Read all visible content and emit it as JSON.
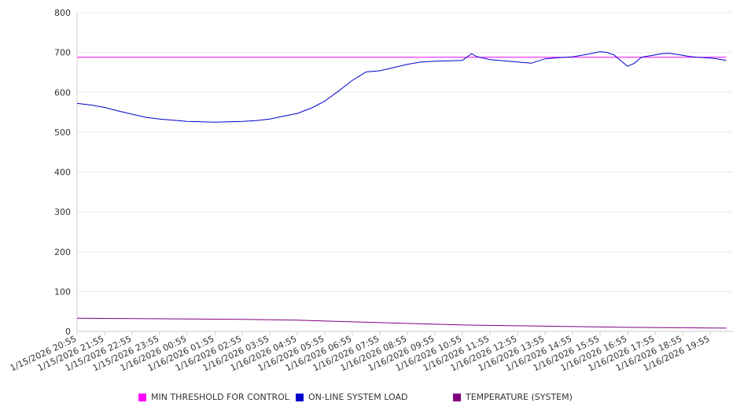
{
  "colors": {
    "threshold": "#ff00ff",
    "load": "#0000cc",
    "temperature": "#800080",
    "grid": "#eaeaea",
    "axis": "#cccccc"
  },
  "legend": [
    {
      "label": "MIN THRESHOLD FOR CONTROL",
      "color": "#ff00ff"
    },
    {
      "label": "ON-LINE SYSTEM LOAD",
      "color": "#0000cc"
    },
    {
      "label": "TEMPERATURE (SYSTEM)",
      "color": "#800080"
    }
  ],
  "chart_data": {
    "type": "line",
    "title": "",
    "xlabel": "",
    "ylabel": "",
    "ylim": [
      0,
      800
    ],
    "yticks": [
      0,
      100,
      200,
      300,
      400,
      500,
      600,
      700,
      800
    ],
    "grid": true,
    "legend_position": "bottom",
    "xtick_labels": [
      "1/15/2026 20:55",
      "1/15/2026 21:55",
      "1/15/2026 22:55",
      "1/15/2026 23:55",
      "1/16/2026 00:55",
      "1/16/2026 01:55",
      "1/16/2026 02:55",
      "1/16/2026 03:55",
      "1/16/2026 04:55",
      "1/16/2026 05:55",
      "1/16/2026 06:55",
      "1/16/2026 07:55",
      "1/16/2026 08:55",
      "1/16/2026 09:55",
      "1/16/2026 10:55",
      "1/16/2026 11:55",
      "1/16/2026 12:55",
      "1/16/2026 13:55",
      "1/16/2026 14:55",
      "1/16/2026 15:55",
      "1/16/2026 16:55",
      "1/16/2026 17:55",
      "1/16/2026 18:55",
      "1/16/2026 19:55"
    ],
    "series": [
      {
        "name": "MIN THRESHOLD FOR CONTROL",
        "x": [
          "1/15/2026 20:55",
          "1/16/2026 20:30"
        ],
        "values": [
          688,
          688
        ]
      },
      {
        "name": "ON-LINE SYSTEM LOAD",
        "x": [
          "1/15/2026 20:55",
          "1/15/2026 21:25",
          "1/15/2026 21:55",
          "1/15/2026 22:25",
          "1/15/2026 22:55",
          "1/15/2026 23:25",
          "1/15/2026 23:55",
          "1/16/2026 00:25",
          "1/16/2026 00:55",
          "1/16/2026 01:25",
          "1/16/2026 01:55",
          "1/16/2026 02:25",
          "1/16/2026 02:55",
          "1/16/2026 03:25",
          "1/16/2026 03:55",
          "1/16/2026 04:25",
          "1/16/2026 04:55",
          "1/16/2026 05:25",
          "1/16/2026 05:55",
          "1/16/2026 06:25",
          "1/16/2026 06:55",
          "1/16/2026 07:25",
          "1/16/2026 07:55",
          "1/16/2026 08:25",
          "1/16/2026 08:55",
          "1/16/2026 09:25",
          "1/16/2026 09:55",
          "1/16/2026 10:25",
          "1/16/2026 10:55",
          "1/16/2026 11:15",
          "1/16/2026 11:25",
          "1/16/2026 11:55",
          "1/16/2026 12:25",
          "1/16/2026 12:55",
          "1/16/2026 13:25",
          "1/16/2026 13:55",
          "1/16/2026 14:25",
          "1/16/2026 14:55",
          "1/16/2026 15:25",
          "1/16/2026 15:55",
          "1/16/2026 16:10",
          "1/16/2026 16:25",
          "1/16/2026 16:55",
          "1/16/2026 17:10",
          "1/16/2026 17:25",
          "1/16/2026 17:55",
          "1/16/2026 18:10",
          "1/16/2026 18:25",
          "1/16/2026 18:55",
          "1/16/2026 19:10",
          "1/16/2026 19:25",
          "1/16/2026 19:55",
          "1/16/2026 20:10",
          "1/16/2026 20:30"
        ],
        "values": [
          572,
          568,
          562,
          553,
          545,
          537,
          533,
          530,
          527,
          526,
          525,
          526,
          527,
          529,
          533,
          540,
          547,
          560,
          578,
          603,
          630,
          651,
          654,
          662,
          670,
          676,
          678,
          679,
          680,
          697,
          690,
          682,
          679,
          676,
          673,
          684,
          687,
          689,
          695,
          702,
          700,
          694,
          665,
          673,
          688,
          694,
          697,
          698,
          693,
          690,
          688,
          686,
          684,
          680
        ]
      },
      {
        "name": "TEMPERATURE (SYSTEM)",
        "x": [
          "1/15/2026 20:55",
          "1/15/2026 22:55",
          "1/16/2026 00:55",
          "1/16/2026 02:55",
          "1/16/2026 04:55",
          "1/16/2026 06:55",
          "1/16/2026 08:55",
          "1/16/2026 10:55",
          "1/16/2026 12:55",
          "1/16/2026 14:55",
          "1/16/2026 16:55",
          "1/16/2026 18:55",
          "1/16/2026 20:30"
        ],
        "values": [
          33,
          32,
          31,
          30,
          28,
          24,
          20,
          16,
          14,
          12,
          10,
          9,
          8
        ]
      }
    ]
  }
}
